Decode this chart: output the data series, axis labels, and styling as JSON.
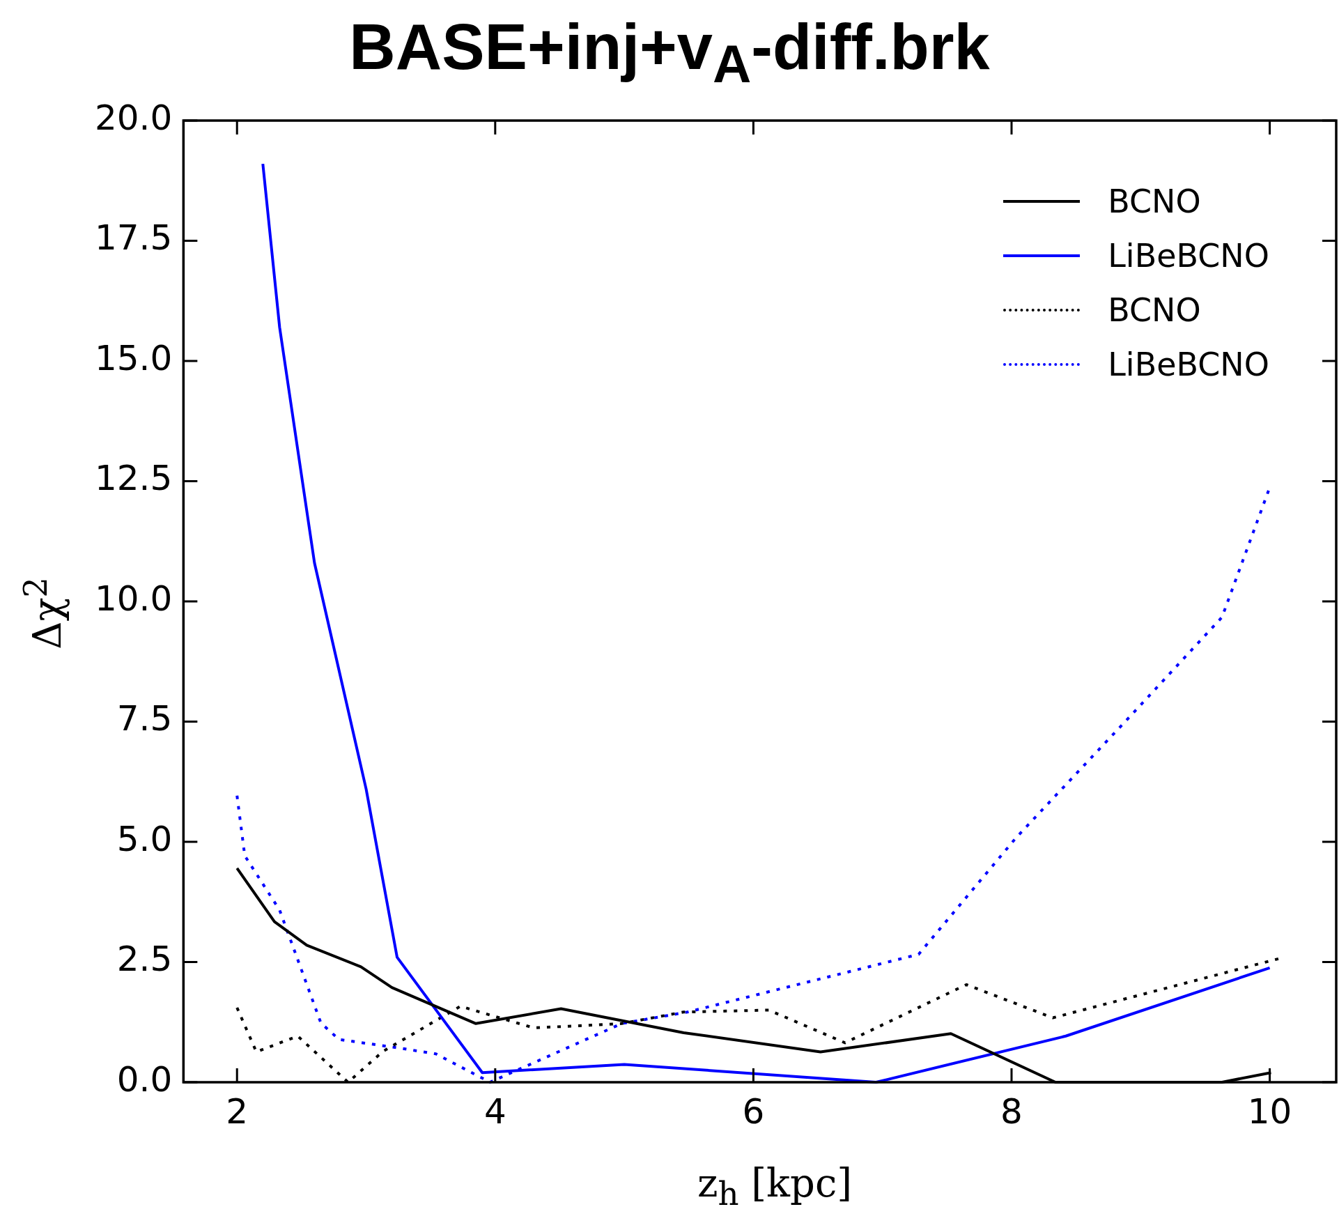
{
  "chart_data": {
    "type": "line",
    "title": "BASE+inj+v$_{A}$-diff.brk",
    "xlabel": "z$_{h}$ [kpc]",
    "ylabel": "Δχ$^{2}$",
    "xlim": [
      1.585,
      10.515
    ],
    "xticks": [
      2,
      4,
      6,
      8,
      10
    ],
    "ylim": [
      0,
      20
    ],
    "yticks": [
      {
        "value": 0,
        "label": "0.0"
      },
      {
        "value": 2.5,
        "label": "2.5"
      },
      {
        "value": 5,
        "label": "5.0"
      },
      {
        "value": 7.5,
        "label": "7.5"
      },
      {
        "value": 10,
        "label": "10.0"
      },
      {
        "value": 12.5,
        "label": "12.5"
      },
      {
        "value": 15,
        "label": "15.0"
      },
      {
        "value": 17.5,
        "label": "17.5"
      },
      {
        "value": 20,
        "label": "20.0"
      }
    ],
    "grid": false,
    "legend": "top right",
    "marker": "none",
    "series": [
      {
        "name": "BCNO",
        "color": "#000000",
        "line_style": "solid",
        "x": [
          2,
          2.29,
          2.54,
          2.96,
          3.2,
          3.85,
          4.51,
          5.46,
          6.52,
          7.53,
          8.34,
          9.63,
          10.01
        ],
        "values": [
          4.45,
          3.34,
          2.85,
          2.4,
          1.97,
          1.22,
          1.53,
          1.03,
          0.63,
          1.01,
          0,
          0,
          0.2
        ]
      },
      {
        "name": "LiBeBCNO",
        "color": "#0000ff",
        "line_style": "solid",
        "x": [
          2.2,
          2.33,
          2.6,
          3.0,
          3.24,
          3.9,
          5.0,
          6.95,
          8.42,
          10.0
        ],
        "values": [
          19.1,
          15.7,
          10.8,
          6.1,
          2.6,
          0.2,
          0.37,
          0,
          0.96,
          2.38
        ]
      },
      {
        "name": "BCNO",
        "color": "#000000",
        "line_style": "dotted",
        "x": [
          2,
          2.15,
          2.47,
          2.86,
          3.13,
          3.73,
          4.3,
          4.98,
          5.46,
          6.12,
          6.71,
          7.65,
          8.32,
          10.07
        ],
        "values": [
          1.55,
          0.63,
          0.96,
          0,
          0.64,
          1.58,
          1.13,
          1.22,
          1.46,
          1.5,
          0.82,
          2.03,
          1.34,
          2.57
        ]
      },
      {
        "name": "LiBeBCNO",
        "color": "#0000ff",
        "line_style": "dotted",
        "x": [
          2,
          2.06,
          2.33,
          2.65,
          2.79,
          3.26,
          3.54,
          3.96,
          4.98,
          5.49,
          7.28,
          8.04,
          8.95,
          9.63,
          10.0
        ],
        "values": [
          5.96,
          4.71,
          3.58,
          1.23,
          0.89,
          0.71,
          0.59,
          0,
          1.22,
          1.46,
          2.66,
          5.1,
          7.7,
          9.67,
          12.37
        ]
      }
    ]
  }
}
